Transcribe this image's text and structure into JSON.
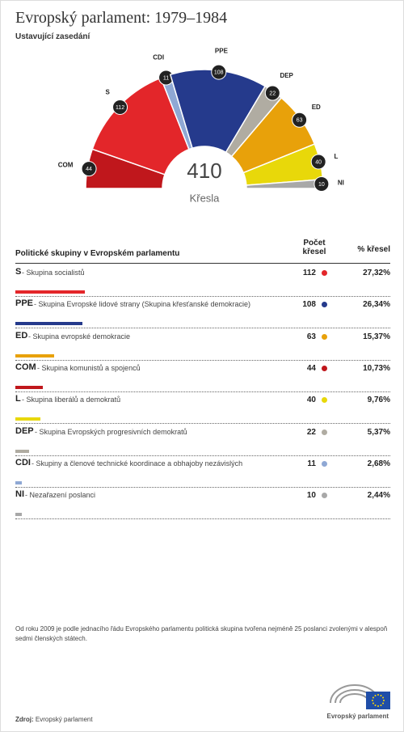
{
  "chart_data": {
    "type": "semicircle",
    "title": "Evropský parlament: 1979–1984",
    "subtitle": "Ustavující zasedání",
    "total": 410,
    "total_label": "Křesla",
    "categories": [
      "COM",
      "S",
      "CDI",
      "PPE",
      "DEP",
      "ED",
      "L",
      "NI"
    ],
    "values": [
      44,
      112,
      11,
      108,
      22,
      63,
      40,
      10
    ],
    "colors": [
      "#c0171c",
      "#e3262a",
      "#8fa8d4",
      "#253a8c",
      "#b0aca2",
      "#e8a10a",
      "#e8d80a",
      "#a8a8a8"
    ]
  },
  "table": {
    "header": [
      "Politické skupiny v Evropském parlamentu",
      "Počet křesel",
      "% křesel"
    ],
    "rows": [
      {
        "abbr": "S",
        "name": "Skupina socialistů",
        "seats": 112,
        "percent": 27.32,
        "percent_label": "27,32%",
        "color": "#e3262a"
      },
      {
        "abbr": "PPE",
        "name": "Skupina Evropské lidové strany (Skupina křesťanské demokracie)",
        "seats": 108,
        "percent": 26.34,
        "percent_label": "26,34%",
        "color": "#253a8c"
      },
      {
        "abbr": "ED",
        "name": "Skupina evropské demokracie",
        "seats": 63,
        "percent": 15.37,
        "percent_label": "15,37%",
        "color": "#e8a10a"
      },
      {
        "abbr": "COM",
        "name": "Skupina komunistů a spojenců",
        "seats": 44,
        "percent": 10.73,
        "percent_label": "10,73%",
        "color": "#c0171c"
      },
      {
        "abbr": "L",
        "name": "Skupina liberálů a demokratů",
        "seats": 40,
        "percent": 9.76,
        "percent_label": "9,76%",
        "color": "#e8d80a"
      },
      {
        "abbr": "DEP",
        "name": "Skupina Evropských progresivních demokratů",
        "seats": 22,
        "percent": 5.37,
        "percent_label": "5,37%",
        "color": "#b0aca2"
      },
      {
        "abbr": "CDI",
        "name": "Skupiny a členové technické koordinace a obhajoby nezávislých",
        "seats": 11,
        "percent": 2.68,
        "percent_label": "2,68%",
        "color": "#8fa8d4"
      },
      {
        "abbr": "NI",
        "name": "Nezařazení poslanci",
        "seats": 10,
        "percent": 2.44,
        "percent_label": "2,44%",
        "color": "#a8a8a8"
      }
    ]
  },
  "footnote": "Od roku 2009 je podle jednacího řádu Evropského parlamentu politická skupina tvořena nejméně 25 poslanci zvolenými v alespoň sedmi členských státech.",
  "source_label": "Zdroj:",
  "source": "Evropský parlament",
  "logo_text": "Evropský parlament"
}
